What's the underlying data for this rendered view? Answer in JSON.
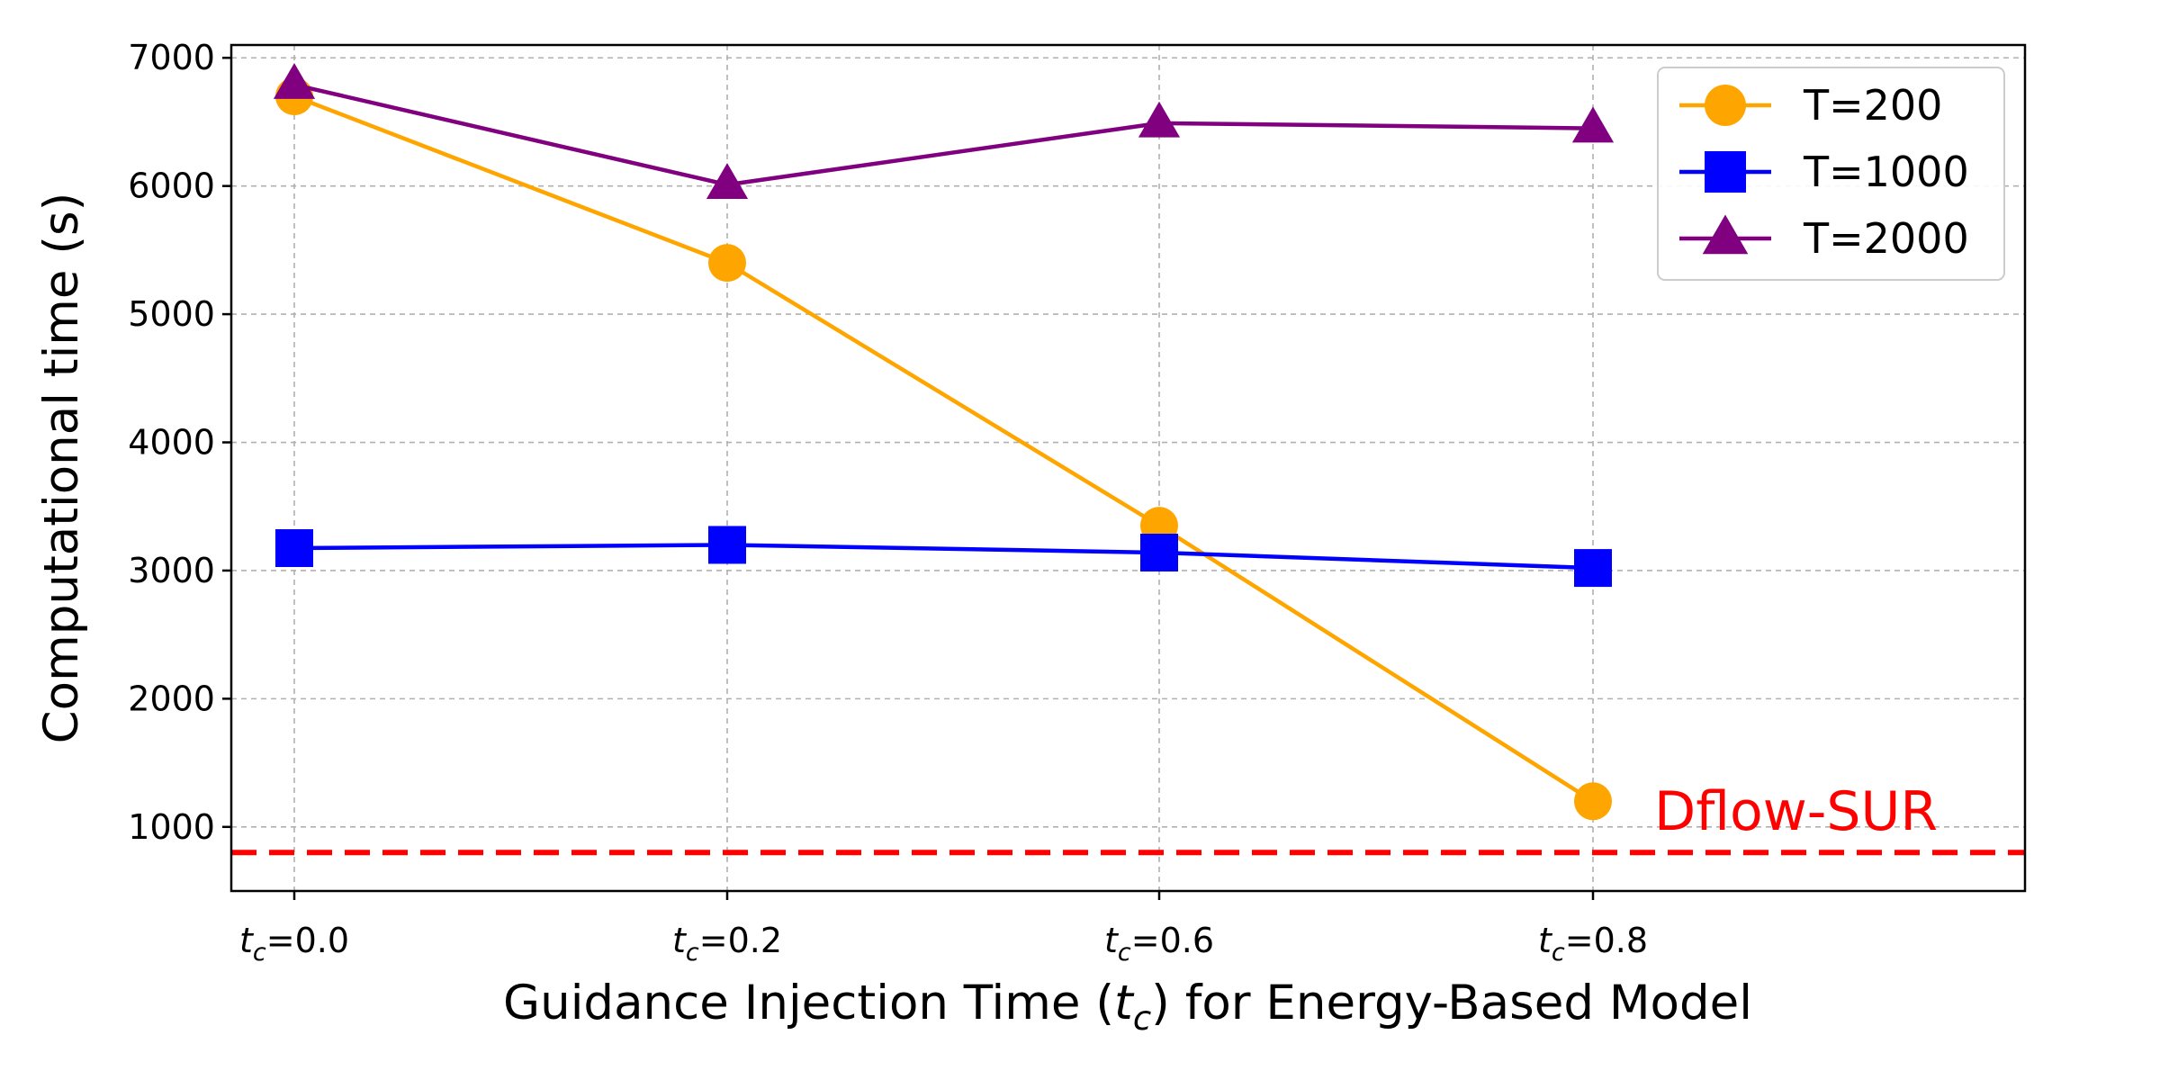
{
  "chart_data": {
    "type": "line",
    "categories": [
      "tc=0.0",
      "tc=0.2",
      "tc=0.6",
      "tc=0.8"
    ],
    "xlabel": "Guidance Injection Time (tc) for Energy-Based Model",
    "ylabel": "Computational time (s)",
    "ylim": [
      500,
      7100
    ],
    "yticks": [
      1000,
      2000,
      3000,
      4000,
      5000,
      6000,
      7000
    ],
    "grid": true,
    "legend_position": "top-right",
    "series": [
      {
        "name": "T=200",
        "color": "#FFA500",
        "marker": "circle",
        "values": [
          6700,
          5400,
          3350,
          1200
        ]
      },
      {
        "name": "T=1000",
        "color": "#0000FF",
        "marker": "square",
        "values": [
          3175,
          3200,
          3140,
          3020
        ]
      },
      {
        "name": "T=2000",
        "color": "#800080",
        "marker": "triangle",
        "values": [
          6790,
          6010,
          6490,
          6450
        ]
      }
    ],
    "reference_line": {
      "label": "Dflow-SUR",
      "value": 800,
      "color": "#FF0000",
      "style": "dashed"
    }
  }
}
